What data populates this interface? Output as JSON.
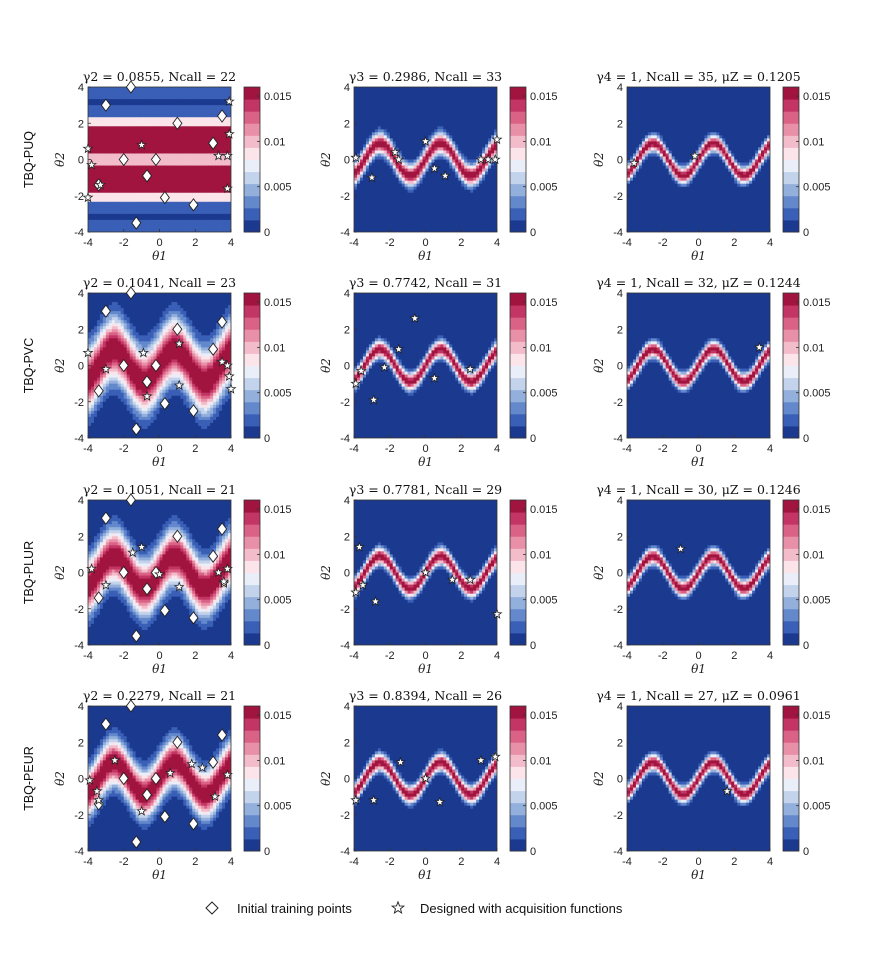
{
  "figure": {
    "row_labels": [
      "TBQ-PUQ",
      "TBQ-PVC",
      "TBQ-PLUR",
      "TBQ-PEUR"
    ],
    "legend": {
      "initial_label": "Initial training points",
      "designed_label": "Designed with acquisition functions"
    }
  },
  "chart_data": {
    "type": "heatmap",
    "xlabel": "θ1",
    "ylabel": "θ2",
    "xlim": [
      -4,
      4
    ],
    "ylim": [
      -4,
      4
    ],
    "x_ticks": [
      "-4",
      "-2",
      "0",
      "2",
      "4"
    ],
    "y_ticks": [
      "4",
      "2",
      "0",
      "-2",
      "-4"
    ],
    "colorbar_ticks": [
      "0.015",
      "0.01",
      "0.005",
      "0"
    ],
    "colorbar_range": [
      0,
      0.016
    ],
    "colors": {
      "low": "#1b3a8f",
      "levels": [
        "#1b3a8f",
        "#3a5fb6",
        "#6388cc",
        "#93afdc",
        "#c3d3ec",
        "#e9eef8",
        "#fbe4ea",
        "#f3bccb",
        "#e990a9",
        "#d96286",
        "#c23564",
        "#a0143f"
      ]
    },
    "initial_points": [
      [
        -1.6,
        4.0
      ],
      [
        -3.0,
        3.0
      ],
      [
        3.5,
        2.4
      ],
      [
        1.0,
        2.0
      ],
      [
        3.0,
        0.9
      ],
      [
        -2.0,
        0.0
      ],
      [
        -0.7,
        -0.9
      ],
      [
        -3.4,
        -1.4
      ],
      [
        -0.2,
        0.0
      ],
      [
        1.9,
        -2.5
      ],
      [
        0.3,
        -2.1
      ],
      [
        -1.3,
        -3.5
      ]
    ],
    "panels": [
      {
        "row": 0,
        "col": 0,
        "title": "γ2 = 0.0855,  Ncall = 22",
        "mode": "bands",
        "stars": [
          [
            -4.0,
            0.6
          ],
          [
            -3.8,
            -0.3
          ],
          [
            -4.0,
            -2.1
          ],
          [
            -1.0,
            0.8
          ],
          [
            3.3,
            0.2
          ],
          [
            3.8,
            0.2
          ],
          [
            3.9,
            3.2
          ],
          [
            3.9,
            1.4
          ],
          [
            3.8,
            -1.6
          ],
          [
            -3.3,
            -1.4
          ]
        ]
      },
      {
        "row": 0,
        "col": 1,
        "title": "γ3 = 0.2986,  Ncall = 33",
        "mode": "sine",
        "width": 0.55,
        "stars": [
          [
            -3.9,
            0.1
          ],
          [
            -3.0,
            -1.0
          ],
          [
            -1.7,
            0.4
          ],
          [
            -1.5,
            0.0
          ],
          [
            0.0,
            1.0
          ],
          [
            0.5,
            -0.5
          ],
          [
            1.1,
            -0.9
          ],
          [
            3.1,
            0.0
          ],
          [
            3.5,
            0.0
          ],
          [
            3.9,
            0.0
          ],
          [
            4.0,
            1.1
          ]
        ]
      },
      {
        "row": 0,
        "col": 2,
        "title": "γ4 = 1,  Ncall = 35,  μZ = 0.1205",
        "mode": "sine",
        "width": 0.42,
        "stars": [
          [
            -3.6,
            -0.2
          ],
          [
            -0.2,
            0.2
          ]
        ]
      },
      {
        "row": 1,
        "col": 0,
        "title": "γ2 = 0.1041,  Ncall = 23",
        "mode": "wide",
        "width": 1.6,
        "stars": [
          [
            -4.0,
            0.7
          ],
          [
            -3.0,
            -0.2
          ],
          [
            -0.9,
            0.7
          ],
          [
            -0.7,
            -1.7
          ],
          [
            1.1,
            -1.1
          ],
          [
            1.1,
            1.2
          ],
          [
            3.5,
            0.2
          ],
          [
            3.8,
            0.0
          ],
          [
            3.9,
            -0.6
          ],
          [
            4.0,
            -1.3
          ]
        ]
      },
      {
        "row": 1,
        "col": 1,
        "title": "γ3 = 0.7742,  Ncall = 31",
        "mode": "sine",
        "width": 0.45,
        "stars": [
          [
            -3.9,
            -1.0
          ],
          [
            -3.6,
            -0.3
          ],
          [
            -2.9,
            -1.9
          ],
          [
            -2.3,
            -0.1
          ],
          [
            -1.5,
            0.9
          ],
          [
            -0.6,
            2.6
          ],
          [
            0.5,
            -0.7
          ],
          [
            2.5,
            -0.2
          ]
        ]
      },
      {
        "row": 1,
        "col": 2,
        "title": "γ4 = 1,  Ncall = 32,  μZ = 0.1244",
        "mode": "sine",
        "width": 0.42,
        "stars": [
          [
            3.4,
            1.0
          ]
        ]
      },
      {
        "row": 2,
        "col": 0,
        "title": "γ2 = 0.1051,  Ncall = 21",
        "mode": "wide",
        "width": 1.4,
        "stars": [
          [
            -3.8,
            0.2
          ],
          [
            -3.0,
            -0.7
          ],
          [
            -1.5,
            1.1
          ],
          [
            -1.0,
            1.4
          ],
          [
            0.0,
            -0.1
          ],
          [
            1.1,
            -0.8
          ],
          [
            3.3,
            0.0
          ],
          [
            3.6,
            -0.6
          ],
          [
            3.8,
            0.2
          ],
          [
            3.6,
            -0.5
          ]
        ]
      },
      {
        "row": 2,
        "col": 1,
        "title": "γ3 = 0.7781,  Ncall = 29",
        "mode": "sine",
        "width": 0.45,
        "stars": [
          [
            -3.7,
            1.4
          ],
          [
            -3.5,
            -0.7
          ],
          [
            -3.9,
            -1.1
          ],
          [
            -2.8,
            -1.6
          ],
          [
            0.0,
            0.0
          ],
          [
            1.5,
            -0.4
          ],
          [
            2.5,
            -0.4
          ],
          [
            4.0,
            -2.3
          ]
        ]
      },
      {
        "row": 2,
        "col": 2,
        "title": "γ4 = 1,  Ncall = 30,  μZ = 0.1246",
        "mode": "sine",
        "width": 0.42,
        "stars": [
          [
            -1.0,
            1.3
          ]
        ]
      },
      {
        "row": 3,
        "col": 0,
        "title": "γ2 = 0.2279,  Ncall = 21",
        "mode": "wide",
        "width": 1.2,
        "stars": [
          [
            -3.9,
            -0.1
          ],
          [
            -2.5,
            1.0
          ],
          [
            -3.5,
            -0.7
          ],
          [
            -1.0,
            -1.8
          ],
          [
            0.6,
            0.3
          ],
          [
            2.4,
            0.6
          ],
          [
            3.1,
            -1.0
          ],
          [
            3.8,
            0.2
          ],
          [
            -3.4,
            -1.2
          ],
          [
            1.8,
            0.8
          ]
        ]
      },
      {
        "row": 3,
        "col": 1,
        "title": "γ3 = 0.8394,  Ncall = 26",
        "mode": "sine",
        "width": 0.45,
        "stars": [
          [
            -3.9,
            -1.2
          ],
          [
            -2.9,
            -1.2
          ],
          [
            -1.4,
            0.9
          ],
          [
            0.0,
            0.0
          ],
          [
            0.8,
            -1.3
          ],
          [
            3.1,
            1.0
          ],
          [
            3.9,
            1.2
          ]
        ]
      },
      {
        "row": 3,
        "col": 2,
        "title": "γ4 = 1,  Ncall = 27,  μZ = 0.0961",
        "mode": "sine",
        "width": 0.42,
        "stars": [
          [
            1.6,
            -0.7
          ]
        ]
      }
    ]
  }
}
